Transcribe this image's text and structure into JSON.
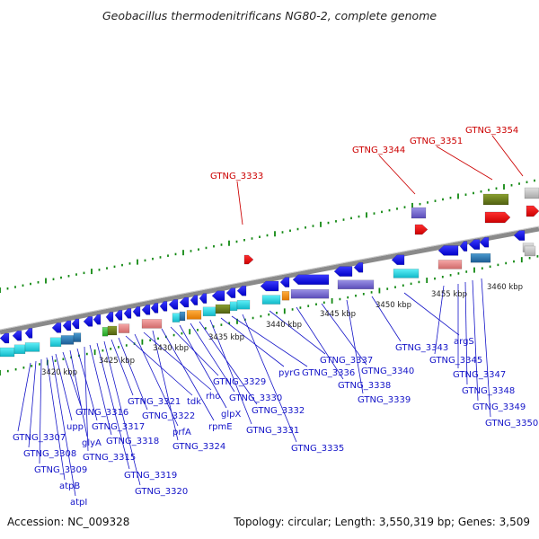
{
  "title": "Geobacillus thermodenitrificans NG80-2, complete genome",
  "footer": {
    "accession": "Accession: NC_009328",
    "stats": "Topology: circular; Length: 3,550,319 bp; Genes: 3,509"
  },
  "colors": {
    "cds": "#0a0af0",
    "highlight": "#dd0000",
    "label_blue": "#1414c8",
    "label_red": "#cc0000",
    "tick_green": "#118811",
    "backbone": "#8a8a8a"
  },
  "scale_labels": [
    "3420 kbp",
    "3425 kbp",
    "3430 kbp",
    "3435 kbp",
    "3440 kbp",
    "3445 kbp",
    "3450 kbp",
    "3455 kbp",
    "3460 kbp"
  ],
  "highlight_labels": [
    "GTNG_3333",
    "GTNG_3344",
    "GTNG_3351",
    "GTNG_3354"
  ],
  "gene_labels": [
    "GTNG_3307",
    "GTNG_3308",
    "GTNG_3309",
    "atpB",
    "atpI",
    "upp",
    "GTNG_3316",
    "glyA",
    "GTNG_3317",
    "GTNG_3315",
    "GTNG_3318",
    "GTNG_3319",
    "GTNG_3320",
    "GTNG_3321",
    "GTNG_3322",
    "tdk",
    "prfA",
    "rho",
    "GTNG_3324",
    "rpmE",
    "GTNG_3329",
    "glpX",
    "GTNG_3330",
    "GTNG_3332",
    "GTNG_3331",
    "pyrG",
    "GTNG_3336",
    "GTNG_3335",
    "GTNG_3337",
    "GTNG_3338",
    "GTNG_3340",
    "GTNG_3339",
    "GTNG_3343",
    "argS",
    "GTNG_3345",
    "GTNG_3347",
    "GTNG_3348",
    "GTNG_3349",
    "GTNG_3350"
  ]
}
